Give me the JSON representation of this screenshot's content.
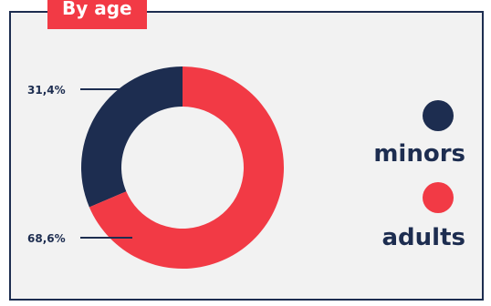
{
  "chart_data": {
    "type": "pie",
    "title": "By age",
    "donut": true,
    "slices": [
      {
        "label": "minors",
        "value": 31.4,
        "display": "31,4%",
        "color": "#1d2d50"
      },
      {
        "label": "adults",
        "value": 68.6,
        "display": "68,6%",
        "color": "#f23a45"
      }
    ],
    "legend": {
      "placement": "right"
    }
  },
  "colors": {
    "primary": "#1d2d50",
    "accent": "#f23a45",
    "panel_bg": "#f2f2f2"
  }
}
